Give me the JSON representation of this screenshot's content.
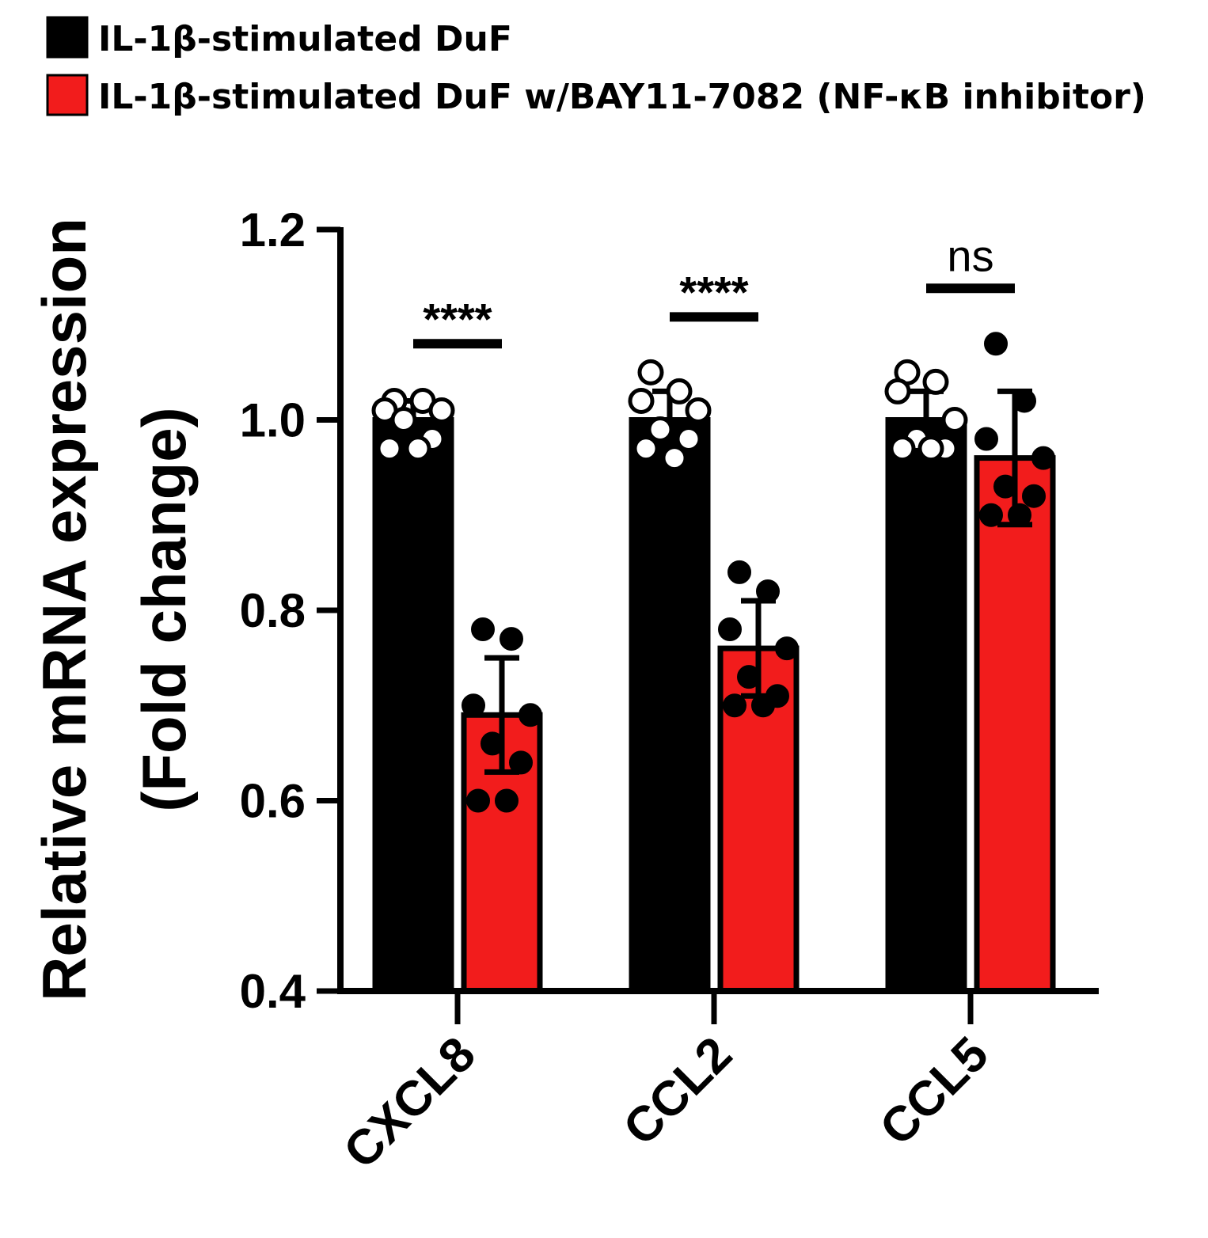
{
  "chart_data": {
    "type": "bar",
    "ylabel": [
      "Relative mRNA expression",
      "(Fold change)"
    ],
    "ylim": [
      0.4,
      1.2
    ],
    "yticks": [
      0.4,
      0.6,
      0.8,
      1.0,
      1.2
    ],
    "ytick_labels": [
      "0.4",
      "0.6",
      "0.8",
      "1.0",
      "1.2"
    ],
    "categories": [
      "CXCL8",
      "CCL2",
      "CCL5"
    ],
    "legend_position": "top-left",
    "series": [
      {
        "name": "IL-1β-stimulated DuF",
        "color": "#000000",
        "point_style": "open",
        "values": [
          1.0,
          1.0,
          1.0
        ],
        "sd": [
          0.02,
          0.03,
          0.03
        ],
        "points": [
          [
            1.02,
            1.02,
            1.01,
            1.01,
            1.0,
            0.98,
            0.97,
            0.97
          ],
          [
            1.05,
            1.03,
            1.02,
            1.01,
            0.99,
            0.98,
            0.97,
            0.96
          ],
          [
            1.05,
            1.04,
            1.03,
            1.0,
            0.98,
            0.97,
            0.97,
            0.97
          ]
        ]
      },
      {
        "name": "IL-1β-stimulated DuF w/BAY11-7082 (NF-κB inhibitor)",
        "color": "#f21c1c",
        "point_style": "filled",
        "values": [
          0.69,
          0.76,
          0.96
        ],
        "sd": [
          0.06,
          0.05,
          0.07
        ],
        "points": [
          [
            0.78,
            0.77,
            0.7,
            0.69,
            0.66,
            0.64,
            0.6,
            0.6
          ],
          [
            0.84,
            0.82,
            0.78,
            0.76,
            0.73,
            0.71,
            0.7,
            0.7
          ],
          [
            1.08,
            1.02,
            0.98,
            0.96,
            0.93,
            0.92,
            0.9,
            0.9
          ]
        ]
      }
    ],
    "significance": [
      "****",
      "****",
      "ns"
    ]
  }
}
